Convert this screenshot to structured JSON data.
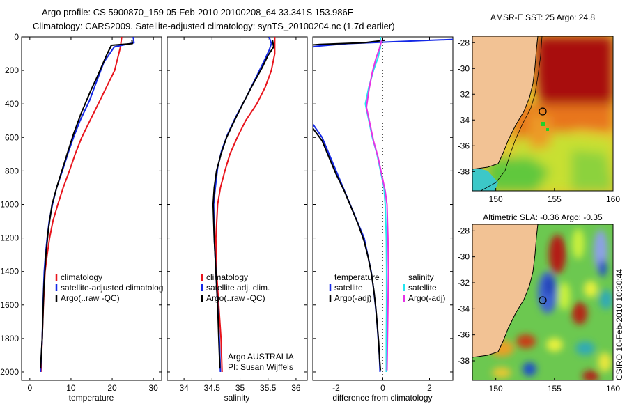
{
  "figure": {
    "title_line1": "Argo profile: CS 5900870_159 05-Feb-2010 20100208_64 33.341S 153.986E",
    "title_line2": "Climatology: CARS2009. Satellite-adjusted climatology: synTS_20100204.nc (1.7d earlier)",
    "side_caption": "CSIRO 10-Feb-2010 10:30:44",
    "colors": {
      "climatology": "#e8141c",
      "satellite": "#1428e6",
      "argo": "#000000",
      "sat_cyan": "#22e6f0",
      "argo_magenta": "#e632e6",
      "land": "#f2c294",
      "warm": "#a80a0a"
    }
  },
  "chart_data": [
    {
      "type": "line",
      "xlabel": "temperature",
      "ylabel": "",
      "xlim": [
        -2,
        32
      ],
      "ylim": [
        0,
        2050
      ],
      "y_reversed": true,
      "xticks": [
        0,
        10,
        20,
        30
      ],
      "yticks": [
        0,
        200,
        400,
        600,
        800,
        1000,
        1200,
        1400,
        1600,
        1800,
        2000
      ],
      "legend": [
        "climatology",
        "satellite-adjusted climatolog",
        "Argo(..raw -QC)"
      ],
      "legend_placement": "lower-right",
      "series": [
        {
          "name": "climatology",
          "color": "#e8141c",
          "points": [
            [
              22.3,
              0
            ],
            [
              22,
              60
            ],
            [
              20.6,
              200
            ],
            [
              18.6,
              300
            ],
            [
              16.6,
              400
            ],
            [
              14.6,
              500
            ],
            [
              12.6,
              600
            ],
            [
              11,
              700
            ],
            [
              9.6,
              800
            ],
            [
              8.1,
              900
            ],
            [
              6.8,
              1000
            ],
            [
              5.6,
              1100
            ],
            [
              4.8,
              1200
            ],
            [
              4.2,
              1300
            ],
            [
              3.7,
              1400
            ],
            [
              3.3,
              1600
            ],
            [
              3,
              1800
            ],
            [
              2.7,
              2000
            ]
          ]
        },
        {
          "name": "satellite-adjusted climatolog",
          "color": "#1428e6",
          "points": [
            [
              25.1,
              0
            ],
            [
              25.3,
              35
            ],
            [
              20.5,
              60
            ],
            [
              18,
              150
            ],
            [
              16.3,
              260
            ],
            [
              14.5,
              380
            ],
            [
              12.2,
              500
            ],
            [
              10.6,
              600
            ],
            [
              9.2,
              700
            ],
            [
              7.9,
              800
            ],
            [
              6.5,
              900
            ],
            [
              5.5,
              1000
            ],
            [
              4.7,
              1100
            ],
            [
              4.2,
              1200
            ],
            [
              3.8,
              1300
            ],
            [
              3.5,
              1400
            ],
            [
              3.2,
              1600
            ],
            [
              3,
              1800
            ],
            [
              2.6,
              2000
            ]
          ]
        },
        {
          "name": "Argo(..raw -QC)",
          "color": "#000000",
          "points": [
            [
              24.8,
              20
            ],
            [
              24.9,
              40
            ],
            [
              19.8,
              50
            ],
            [
              18.6,
              110
            ],
            [
              16.5,
              230
            ],
            [
              14.8,
              320
            ],
            [
              12.4,
              460
            ],
            [
              10.6,
              580
            ],
            [
              9.3,
              680
            ],
            [
              7.9,
              790
            ],
            [
              6.5,
              900
            ],
            [
              5.4,
              1000
            ],
            [
              4.5,
              1150
            ],
            [
              3.9,
              1300
            ],
            [
              3.4,
              1500
            ],
            [
              3,
              1800
            ],
            [
              2.6,
              1980
            ]
          ]
        }
      ]
    },
    {
      "type": "line",
      "xlabel": "salinity",
      "ylabel": "",
      "xlim": [
        33.7,
        36.2
      ],
      "ylim": [
        0,
        2050
      ],
      "y_reversed": true,
      "xticks": [
        34,
        34.5,
        35,
        35.5,
        36
      ],
      "legend": [
        "climatology",
        "satellite adj. clim.",
        "Argo(..raw -QC)"
      ],
      "legend_placement": "lower-right",
      "annotations": [
        "Argo AUSTRALIA",
        "PI: Susan Wijffels"
      ],
      "series": [
        {
          "name": "climatology",
          "color": "#e8141c",
          "points": [
            [
              35.62,
              0
            ],
            [
              35.62,
              100
            ],
            [
              35.56,
              200
            ],
            [
              35.45,
              300
            ],
            [
              35.3,
              400
            ],
            [
              35.1,
              500
            ],
            [
              34.95,
              600
            ],
            [
              34.82,
              700
            ],
            [
              34.73,
              800
            ],
            [
              34.65,
              900
            ],
            [
              34.6,
              1000
            ],
            [
              34.57,
              1200
            ],
            [
              34.58,
              1400
            ],
            [
              34.62,
              1600
            ],
            [
              34.66,
              1800
            ],
            [
              34.68,
              2000
            ]
          ]
        },
        {
          "name": "satellite adj. clim.",
          "color": "#1428e6",
          "points": [
            [
              35.52,
              0
            ],
            [
              35.56,
              40
            ],
            [
              35.52,
              80
            ],
            [
              35.42,
              150
            ],
            [
              35.26,
              260
            ],
            [
              35.08,
              380
            ],
            [
              34.92,
              480
            ],
            [
              34.78,
              580
            ],
            [
              34.67,
              680
            ],
            [
              34.6,
              780
            ],
            [
              34.56,
              900
            ],
            [
              34.53,
              1000
            ],
            [
              34.54,
              1200
            ],
            [
              34.57,
              1400
            ],
            [
              34.6,
              1600
            ],
            [
              34.63,
              1800
            ],
            [
              34.65,
              2000
            ]
          ]
        },
        {
          "name": "Argo(..raw -QC)",
          "color": "#000000",
          "points": [
            [
              35.58,
              20
            ],
            [
              35.6,
              60
            ],
            [
              35.5,
              110
            ],
            [
              35.4,
              180
            ],
            [
              35.22,
              290
            ],
            [
              35.05,
              400
            ],
            [
              34.9,
              500
            ],
            [
              34.76,
              600
            ],
            [
              34.66,
              700
            ],
            [
              34.58,
              800
            ],
            [
              34.54,
              900
            ],
            [
              34.52,
              1000
            ],
            [
              34.54,
              1200
            ],
            [
              34.57,
              1400
            ],
            [
              34.6,
              1600
            ],
            [
              34.62,
              1800
            ],
            [
              34.64,
              1980
            ]
          ]
        }
      ]
    },
    {
      "type": "line",
      "xlabel": "difference from climatology",
      "ylabel": "",
      "xlim": [
        -3,
        3
      ],
      "ylim": [
        0,
        2050
      ],
      "y_reversed": true,
      "xticks": [
        -2,
        0,
        2
      ],
      "zero_line": true,
      "legend_groups": [
        {
          "title": "temperature",
          "items": [
            "satellite",
            "Argo(-adj)"
          ]
        },
        {
          "title": "salinity",
          "items": [
            "satellite",
            "Argo(-adj)"
          ]
        }
      ],
      "series": [
        {
          "name": "temperature satellite",
          "color": "#1428e6",
          "points": [
            [
              3,
              15
            ],
            [
              -1.5,
              40
            ],
            [
              -2.8,
              55
            ],
            [
              -3,
              60
            ]
          ]
        },
        {
          "name": "temperature satellite",
          "color": "#1428e6",
          "points": [
            [
              -3,
              520
            ],
            [
              -2.6,
              600
            ],
            [
              -2.3,
              700
            ],
            [
              -2,
              800
            ],
            [
              -1.7,
              900
            ],
            [
              -1.4,
              1000
            ],
            [
              -1.1,
              1100
            ],
            [
              -0.8,
              1200
            ],
            [
              -0.65,
              1300
            ],
            [
              -0.5,
              1400
            ],
            [
              -0.4,
              1500
            ],
            [
              -0.32,
              1600
            ],
            [
              -0.25,
              1700
            ],
            [
              -0.2,
              1800
            ],
            [
              -0.15,
              1900
            ],
            [
              -0.12,
              2000
            ]
          ]
        },
        {
          "name": "temperature Argo(-adj)",
          "color": "#000000",
          "points": [
            [
              0.1,
              20
            ],
            [
              -0.8,
              35
            ],
            [
              -2.7,
              45
            ],
            [
              -3,
              48
            ]
          ]
        },
        {
          "name": "temperature Argo(-adj)",
          "color": "#000000",
          "points": [
            [
              -3,
              545
            ],
            [
              -2.6,
              620
            ],
            [
              -2.3,
              720
            ],
            [
              -2,
              820
            ],
            [
              -1.65,
              920
            ],
            [
              -1.35,
              1020
            ],
            [
              -1.05,
              1120
            ],
            [
              -0.8,
              1220
            ],
            [
              -0.62,
              1320
            ],
            [
              -0.48,
              1420
            ],
            [
              -0.38,
              1520
            ],
            [
              -0.3,
              1620
            ],
            [
              -0.24,
              1720
            ],
            [
              -0.18,
              1820
            ],
            [
              -0.14,
              1920
            ],
            [
              -0.1,
              1990
            ]
          ]
        },
        {
          "name": "salinity satellite",
          "color": "#22e6f0",
          "points": [
            [
              -0.1,
              0
            ],
            [
              -0.1,
              60
            ],
            [
              -0.2,
              120
            ],
            [
              -0.4,
              200
            ],
            [
              -0.6,
              300
            ],
            [
              -0.75,
              400
            ],
            [
              -0.6,
              500
            ],
            [
              -0.45,
              600
            ],
            [
              -0.25,
              700
            ],
            [
              -0.1,
              800
            ],
            [
              0.05,
              900
            ],
            [
              0.1,
              1000
            ],
            [
              0.15,
              1200
            ],
            [
              0.16,
              1400
            ],
            [
              0.16,
              1600
            ],
            [
              0.15,
              1800
            ],
            [
              0.15,
              2000
            ]
          ]
        },
        {
          "name": "salinity Argo(-adj)",
          "color": "#e632e6",
          "points": [
            [
              -0.05,
              20
            ],
            [
              -0.15,
              70
            ],
            [
              -0.3,
              130
            ],
            [
              -0.45,
              210
            ],
            [
              -0.6,
              320
            ],
            [
              -0.7,
              420
            ],
            [
              -0.55,
              520
            ],
            [
              -0.4,
              620
            ],
            [
              -0.2,
              720
            ],
            [
              -0.05,
              820
            ],
            [
              0.1,
              920
            ],
            [
              0.18,
              1000
            ],
            [
              0.22,
              1200
            ],
            [
              0.24,
              1400
            ],
            [
              0.22,
              1600
            ],
            [
              0.2,
              1800
            ],
            [
              0.18,
              1990
            ]
          ]
        }
      ]
    }
  ],
  "maps": [
    {
      "title": "AMSR-E SST: 25 Argo: 24.8",
      "kind": "sst",
      "xlim": [
        148,
        160
      ],
      "ylim": [
        -39.5,
        -27.5
      ],
      "xticks": [
        150,
        155,
        160
      ],
      "yticks": [
        -28,
        -30,
        -32,
        -34,
        -36,
        -38
      ],
      "marker": [
        154,
        -33.34
      ]
    },
    {
      "title": "Altimetric SLA: -0.36 Argo: -0.35",
      "kind": "sla",
      "xlim": [
        148,
        160
      ],
      "ylim": [
        -39.5,
        -27.5
      ],
      "xticks": [
        150,
        155,
        160
      ],
      "yticks": [
        -28,
        -30,
        -32,
        -34,
        -36,
        -38
      ],
      "marker": [
        154,
        -33.34
      ]
    }
  ]
}
